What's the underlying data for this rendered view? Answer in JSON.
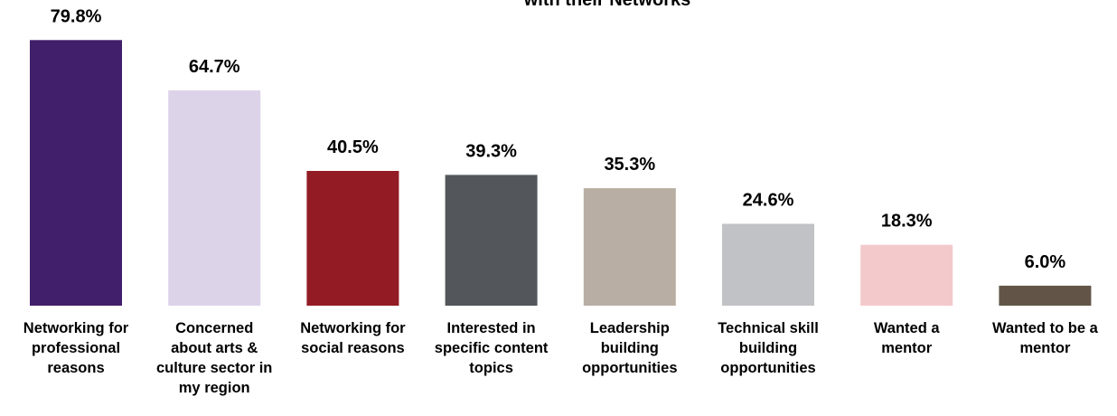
{
  "chart_data": {
    "type": "bar",
    "title": "with their Networks",
    "categories": [
      "Networking for professional reasons",
      "Concerned about arts & culture sector in my region",
      "Networking for social reasons",
      "Interested in specific content topics",
      "Leadership building opportunities",
      "Technical skill building opportunities",
      "Wanted a mentor",
      "Wanted to be a mentor"
    ],
    "category_lines": [
      [
        "Networking for",
        "professional",
        "reasons"
      ],
      [
        "Concerned",
        "about arts &",
        "culture sector in",
        "my region"
      ],
      [
        "Networking for",
        "social reasons"
      ],
      [
        "Interested in",
        "specific content",
        "topics"
      ],
      [
        "Leadership",
        "building",
        "opportunities"
      ],
      [
        "Technical skill",
        "building",
        "opportunities"
      ],
      [
        "Wanted a",
        "mentor"
      ],
      [
        "Wanted to be a",
        "mentor"
      ]
    ],
    "values": [
      79.8,
      64.7,
      40.5,
      39.3,
      35.3,
      24.6,
      18.3,
      6.0
    ],
    "value_labels": [
      "79.8%",
      "64.7%",
      "40.5%",
      "39.3%",
      "35.3%",
      "24.6%",
      "18.3%",
      "6.0%"
    ],
    "colors": [
      "#421f6b",
      "#dcd3e9",
      "#931b24",
      "#53565b",
      "#b8aea3",
      "#c1c2c6",
      "#f4c9cc",
      "#625548"
    ],
    "ylim": [
      0,
      100
    ],
    "grid": false,
    "legend": "none",
    "xlabel": "",
    "ylabel": ""
  }
}
